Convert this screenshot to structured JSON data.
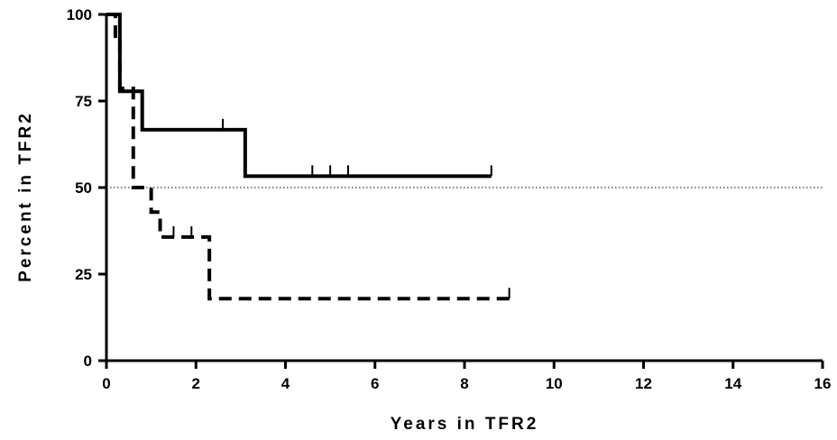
{
  "chart_data": {
    "type": "line",
    "xlabel": "Years in TFR2",
    "ylabel": "Percent in TFR2",
    "xlim": [
      0,
      16
    ],
    "ylim": [
      0,
      100
    ],
    "x_ticks": [
      "0",
      "2",
      "4",
      "6",
      "8",
      "10",
      "12",
      "14",
      "16"
    ],
    "y_ticks": [
      "0",
      "25",
      "50",
      "75",
      "100"
    ],
    "grid": false,
    "legend": "none",
    "reference_line": {
      "y": 50,
      "style": "dotted"
    },
    "series": [
      {
        "style": "solid",
        "color": "#000000",
        "steps": [
          {
            "x": 0,
            "y": 100
          },
          {
            "x": 0.3,
            "y": 77.8
          },
          {
            "x": 0.8,
            "y": 66.7
          },
          {
            "x": 3.1,
            "y": 53.3
          },
          {
            "x": 8.6,
            "y": 53.3
          }
        ],
        "censored": [
          {
            "x": 2.6,
            "y": 66.7
          },
          {
            "x": 4.6,
            "y": 53.3
          },
          {
            "x": 5.0,
            "y": 53.3
          },
          {
            "x": 5.4,
            "y": 53.3
          },
          {
            "x": 8.6,
            "y": 53.3
          }
        ]
      },
      {
        "style": "dashed",
        "color": "#000000",
        "steps": [
          {
            "x": 0,
            "y": 100
          },
          {
            "x": 0.2,
            "y": 92.9
          },
          {
            "x": 0.3,
            "y": 78.6
          },
          {
            "x": 0.6,
            "y": 50.0
          },
          {
            "x": 1.0,
            "y": 42.9
          },
          {
            "x": 1.2,
            "y": 35.7
          },
          {
            "x": 2.3,
            "y": 17.9
          },
          {
            "x": 9.0,
            "y": 17.9
          }
        ],
        "censored": [
          {
            "x": 1.5,
            "y": 35.7
          },
          {
            "x": 1.9,
            "y": 35.7
          },
          {
            "x": 9.0,
            "y": 17.9
          }
        ]
      }
    ]
  }
}
